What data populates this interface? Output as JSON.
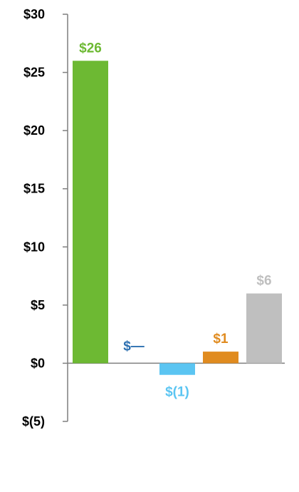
{
  "chart_data": {
    "type": "bar",
    "categories": [
      "",
      "",
      "",
      "",
      ""
    ],
    "values": [
      26,
      0,
      -1,
      1,
      6
    ],
    "data_labels": [
      "$26",
      "$—",
      "$(1)",
      "$1",
      "$6"
    ],
    "bar_colors": [
      "#6DB933",
      "#2C6FB0",
      "#5BC5F2",
      "#E08B1F",
      "#BFBFBF"
    ],
    "label_colors": [
      "#6DB933",
      "#2C6FB0",
      "#5BC5F2",
      "#E08B1F",
      "#BFBFBF"
    ],
    "y_ticks": [
      30,
      25,
      20,
      15,
      10,
      5,
      0,
      -5
    ],
    "y_tick_labels": [
      "$30",
      "$25",
      "$20",
      "$15",
      "$10",
      "$5",
      "$0",
      "$(5)"
    ],
    "ylim": [
      -5,
      30
    ],
    "title": "",
    "xlabel": "",
    "ylabel": "",
    "grid": false,
    "legend": "none"
  }
}
